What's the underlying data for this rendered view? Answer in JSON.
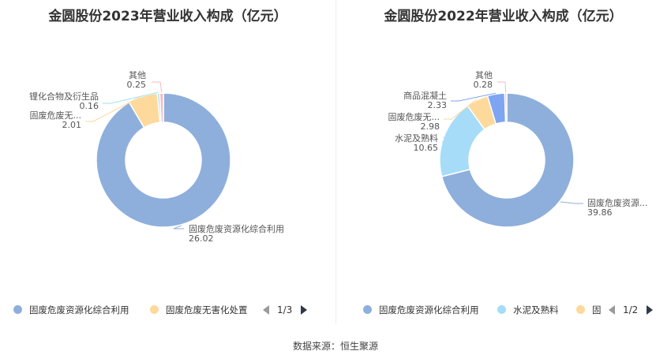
{
  "chart_data": [
    {
      "type": "pie",
      "title": "金圆股份2023年营业收入构成（亿元）",
      "slices": [
        {
          "label": "固废危废资源化综合利用",
          "display_label": "固废危废资源化综合利用",
          "value": 26.02,
          "color": "#8eafdb"
        },
        {
          "label": "固废危废无害化处置",
          "display_label": "固废危废无...",
          "value": 2.01,
          "color": "#fdd99b"
        },
        {
          "label": "锂化合物及衍生品",
          "display_label": "锂化合物及衍生品",
          "value": 0.16,
          "color": "#a0e0ea"
        },
        {
          "label": "其他",
          "display_label": "其他",
          "value": 0.25,
          "color": "#f5b8c3"
        }
      ],
      "legend": {
        "placement": "bottom",
        "items": [
          "固废危废资源化综合利用",
          "固废危废无害化处置"
        ],
        "page": "1/3"
      }
    },
    {
      "type": "pie",
      "title": "金圆股份2022年营业收入构成（亿元）",
      "slices": [
        {
          "label": "固废危废资源化综合利用",
          "display_label": "固废危废资源...",
          "value": 39.86,
          "color": "#8eafdb"
        },
        {
          "label": "水泥及熟料",
          "display_label": "水泥及熟料",
          "value": 10.65,
          "color": "#a6dcf7"
        },
        {
          "label": "固废危废无害化处置",
          "display_label": "固废危废无...",
          "value": 2.98,
          "color": "#fdd99b"
        },
        {
          "label": "商品混凝土",
          "display_label": "商品混凝土",
          "value": 2.33,
          "color": "#7ea5f2"
        },
        {
          "label": "其他",
          "display_label": "其他",
          "value": 0.28,
          "color": "#f5b8c3"
        }
      ],
      "legend": {
        "placement": "bottom",
        "items": [
          "固废危废资源化综合利用",
          "水泥及熟料",
          "固"
        ],
        "page": "1/2"
      }
    }
  ],
  "source": "数据来源：恒生聚源"
}
